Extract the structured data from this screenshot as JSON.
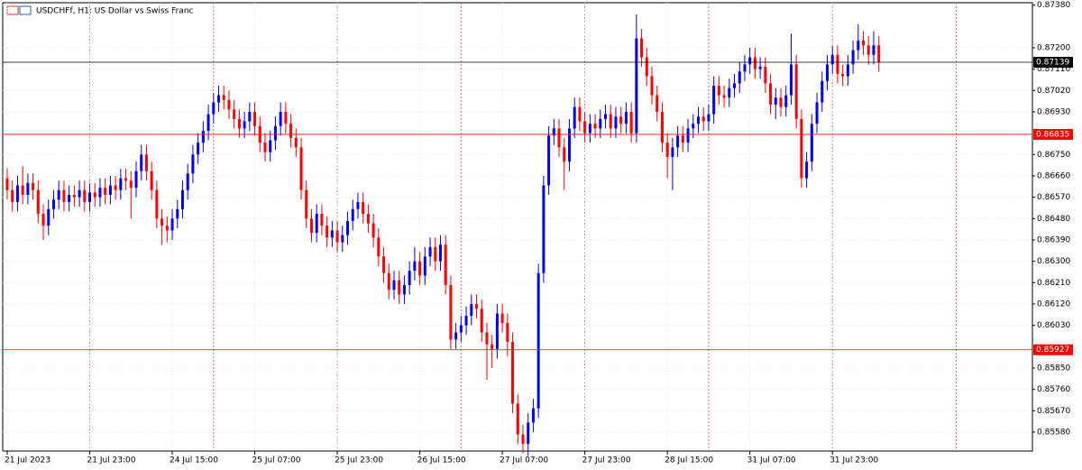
{
  "chart_data": {
    "type": "candlestick",
    "title": "USDCHFf, H1:  US Dollar vs Swiss Franc",
    "bull_color": "#0000ff",
    "bear_color": "#ff0000",
    "grid": true,
    "ylim": [
      0.855,
      0.8739
    ],
    "yticks": [
      {
        "value": 0.8738,
        "label": "0.87380"
      },
      {
        "value": 0.872,
        "label": "0.87200"
      },
      {
        "value": 0.8711,
        "label": "0.87110"
      },
      {
        "value": 0.8702,
        "label": "0.87020"
      },
      {
        "value": 0.8693,
        "label": "0.86930"
      },
      {
        "value": 0.8675,
        "label": "0.86750"
      },
      {
        "value": 0.8666,
        "label": "0.86660"
      },
      {
        "value": 0.8657,
        "label": "0.86570"
      },
      {
        "value": 0.8648,
        "label": "0.86480"
      },
      {
        "value": 0.8639,
        "label": "0.86390"
      },
      {
        "value": 0.863,
        "label": "0.86300"
      },
      {
        "value": 0.8621,
        "label": "0.86210"
      },
      {
        "value": 0.8612,
        "label": "0.86120"
      },
      {
        "value": 0.8603,
        "label": "0.86030"
      },
      {
        "value": 0.8585,
        "label": "0.85850"
      },
      {
        "value": 0.8576,
        "label": "0.85760"
      },
      {
        "value": 0.8567,
        "label": "0.85670"
      },
      {
        "value": 0.8558,
        "label": "0.85580"
      }
    ],
    "levels": [
      {
        "value": 0.87139,
        "color": "#000000"
      },
      {
        "value": 0.86835,
        "color": "#ff0000"
      },
      {
        "value": 0.85927,
        "color": "#ff0000"
      }
    ],
    "categories": [
      "21 Jul 2023",
      null,
      null,
      null,
      null,
      null,
      null,
      null,
      null,
      null,
      null,
      null,
      null,
      null,
      null,
      null,
      "21 Jul 23:00",
      null,
      null,
      null,
      null,
      null,
      null,
      null,
      null,
      null,
      null,
      null,
      null,
      null,
      null,
      null,
      "24 Jul 15:00",
      null,
      null,
      null,
      null,
      null,
      null,
      null,
      null,
      null,
      null,
      null,
      null,
      null,
      null,
      null,
      "25 Jul 07:00",
      null,
      null,
      null,
      null,
      null,
      null,
      null,
      null,
      null,
      null,
      null,
      null,
      null,
      null,
      null,
      "25 Jul 23:00",
      null,
      null,
      null,
      null,
      null,
      null,
      null,
      null,
      null,
      null,
      null,
      null,
      null,
      null,
      null,
      "26 Jul 15:00",
      null,
      null,
      null,
      null,
      null,
      null,
      null,
      null,
      null,
      null,
      null,
      null,
      null,
      null,
      null,
      "27 Jul 07:00",
      null,
      null,
      null,
      null,
      null,
      null,
      null,
      null,
      null,
      null,
      null,
      null,
      null,
      null,
      null,
      "27 Jul 23:00",
      null,
      null,
      null,
      null,
      null,
      null,
      null,
      null,
      null,
      null,
      null,
      null,
      null,
      null,
      null,
      "28 Jul 15:00",
      null,
      null,
      null,
      null,
      null,
      null,
      null,
      null,
      null,
      null,
      null,
      null,
      null,
      null,
      null,
      "31 Jul 07:00",
      null,
      null,
      null,
      null,
      null,
      null,
      null,
      null,
      null,
      null,
      null,
      null,
      null,
      null,
      null,
      "31 Jul 23:00",
      null,
      null,
      null,
      null,
      null,
      null,
      null,
      null,
      null
    ],
    "open": [
      0.8665,
      0.866,
      0.8655,
      0.8662,
      0.8658,
      0.8663,
      0.866,
      0.865,
      0.8645,
      0.8652,
      0.8656,
      0.866,
      0.8655,
      0.8658,
      0.8657,
      0.866,
      0.8655,
      0.8659,
      0.8657,
      0.8661,
      0.8658,
      0.8662,
      0.866,
      0.8665,
      0.8664,
      0.8661,
      0.8668,
      0.8675,
      0.8668,
      0.866,
      0.8648,
      0.8645,
      0.8643,
      0.8648,
      0.8652,
      0.866,
      0.8667,
      0.8675,
      0.868,
      0.8685,
      0.8692,
      0.8697,
      0.87,
      0.8698,
      0.8694,
      0.869,
      0.8686,
      0.8689,
      0.8693,
      0.8687,
      0.868,
      0.8676,
      0.8681,
      0.8687,
      0.8693,
      0.8688,
      0.8682,
      0.8678,
      0.866,
      0.8648,
      0.8642,
      0.865,
      0.8645,
      0.864,
      0.8643,
      0.8638,
      0.8641,
      0.8647,
      0.8652,
      0.8655,
      0.865,
      0.8646,
      0.864,
      0.8632,
      0.8625,
      0.8618,
      0.8622,
      0.8616,
      0.862,
      0.8626,
      0.863,
      0.8624,
      0.8632,
      0.8636,
      0.863,
      0.8637,
      0.862,
      0.8597,
      0.86,
      0.8603,
      0.8607,
      0.8612,
      0.861,
      0.86,
      0.8595,
      0.8593,
      0.8608,
      0.8604,
      0.8596,
      0.857,
      0.8557,
      0.8553,
      0.8562,
      0.8568,
      0.8625,
      0.8662,
      0.8683,
      0.8686,
      0.8678,
      0.8672,
      0.8686,
      0.8695,
      0.8689,
      0.8684,
      0.8688,
      0.8686,
      0.869,
      0.8692,
      0.8686,
      0.8691,
      0.8688,
      0.8693,
      0.8684,
      0.8724,
      0.8716,
      0.8708,
      0.87,
      0.8693,
      0.868,
      0.8674,
      0.8678,
      0.8683,
      0.868,
      0.8686,
      0.8688,
      0.8691,
      0.8689,
      0.8692,
      0.8704,
      0.87,
      0.8699,
      0.8703,
      0.8705,
      0.871,
      0.8713,
      0.8716,
      0.8711,
      0.8712,
      0.8705,
      0.8696,
      0.8699,
      0.8695,
      0.87,
      0.8713,
      0.869,
      0.8665,
      0.8672,
      0.8688,
      0.8697,
      0.8706,
      0.8713,
      0.8717,
      0.8709,
      0.8708,
      0.8713,
      0.8719,
      0.8723,
      0.8721,
      0.8717,
      0.8721
    ],
    "high": [
      0.8669,
      0.8664,
      0.8666,
      0.867,
      0.8667,
      0.8667,
      0.8664,
      0.8654,
      0.8656,
      0.866,
      0.8664,
      0.8664,
      0.8662,
      0.8662,
      0.8664,
      0.8664,
      0.8663,
      0.8663,
      0.8665,
      0.8665,
      0.8666,
      0.8666,
      0.8669,
      0.8669,
      0.8668,
      0.8672,
      0.8679,
      0.8679,
      0.8672,
      0.8664,
      0.8652,
      0.8649,
      0.8652,
      0.8656,
      0.8664,
      0.8671,
      0.8679,
      0.8684,
      0.8689,
      0.8696,
      0.8701,
      0.8704,
      0.8704,
      0.8702,
      0.8698,
      0.8694,
      0.8693,
      0.8697,
      0.8697,
      0.8691,
      0.8684,
      0.8685,
      0.8691,
      0.8697,
      0.8697,
      0.8692,
      0.8686,
      0.8682,
      0.8664,
      0.8652,
      0.8654,
      0.8654,
      0.8649,
      0.8647,
      0.8647,
      0.8645,
      0.8651,
      0.8656,
      0.8659,
      0.8659,
      0.8654,
      0.865,
      0.8644,
      0.8636,
      0.8629,
      0.8626,
      0.8626,
      0.8624,
      0.863,
      0.8636,
      0.8634,
      0.8636,
      0.864,
      0.864,
      0.8641,
      0.8641,
      0.8624,
      0.8604,
      0.8607,
      0.8611,
      0.8616,
      0.8616,
      0.8614,
      0.8604,
      0.8599,
      0.8612,
      0.8612,
      0.8608,
      0.86,
      0.8574,
      0.8561,
      0.8566,
      0.8572,
      0.8629,
      0.8666,
      0.8687,
      0.869,
      0.869,
      0.8682,
      0.869,
      0.8699,
      0.8699,
      0.8693,
      0.8692,
      0.8692,
      0.8694,
      0.8696,
      0.8696,
      0.8695,
      0.8695,
      0.8697,
      0.8697,
      0.8734,
      0.8728,
      0.872,
      0.8712,
      0.8704,
      0.8697,
      0.8684,
      0.8682,
      0.8687,
      0.8687,
      0.869,
      0.8692,
      0.8695,
      0.8695,
      0.8696,
      0.8708,
      0.8708,
      0.8704,
      0.8707,
      0.8709,
      0.8714,
      0.8717,
      0.872,
      0.872,
      0.8716,
      0.8716,
      0.8709,
      0.8703,
      0.8703,
      0.8704,
      0.8726,
      0.8717,
      0.8694,
      0.8676,
      0.8692,
      0.8701,
      0.871,
      0.8717,
      0.8721,
      0.8721,
      0.8713,
      0.8717,
      0.8723,
      0.873,
      0.8727,
      0.8725,
      0.8727,
      0.8725
    ],
    "low": [
      0.8656,
      0.8651,
      0.8651,
      0.8654,
      0.8654,
      0.8656,
      0.8646,
      0.8639,
      0.8641,
      0.8648,
      0.8652,
      0.8651,
      0.8651,
      0.8653,
      0.8653,
      0.8651,
      0.8651,
      0.8653,
      0.8653,
      0.8654,
      0.8654,
      0.8656,
      0.8656,
      0.866,
      0.8648,
      0.8657,
      0.8664,
      0.8664,
      0.8656,
      0.8644,
      0.8637,
      0.8638,
      0.8639,
      0.8644,
      0.8648,
      0.8656,
      0.8663,
      0.8671,
      0.8676,
      0.8681,
      0.8688,
      0.8693,
      0.8694,
      0.869,
      0.8686,
      0.8682,
      0.8682,
      0.8685,
      0.8683,
      0.8676,
      0.8672,
      0.8672,
      0.8677,
      0.8683,
      0.8684,
      0.8678,
      0.8674,
      0.8656,
      0.8644,
      0.8638,
      0.8638,
      0.8641,
      0.8636,
      0.8636,
      0.8634,
      0.8634,
      0.8637,
      0.8643,
      0.8648,
      0.8646,
      0.8642,
      0.8636,
      0.8628,
      0.8621,
      0.8614,
      0.8614,
      0.8612,
      0.8612,
      0.8616,
      0.8622,
      0.862,
      0.862,
      0.8628,
      0.8626,
      0.8626,
      0.8616,
      0.8593,
      0.8593,
      0.8596,
      0.8599,
      0.8603,
      0.8606,
      0.8596,
      0.858,
      0.8585,
      0.8589,
      0.86,
      0.859,
      0.8566,
      0.8553,
      0.8549,
      0.8548,
      0.8558,
      0.8564,
      0.8621,
      0.8658,
      0.8679,
      0.8674,
      0.866,
      0.8668,
      0.8682,
      0.8685,
      0.868,
      0.868,
      0.8682,
      0.8682,
      0.8686,
      0.8682,
      0.8682,
      0.8684,
      0.8684,
      0.868,
      0.868,
      0.8712,
      0.8704,
      0.8696,
      0.8689,
      0.8676,
      0.8665,
      0.866,
      0.8674,
      0.8676,
      0.8676,
      0.8682,
      0.8684,
      0.8685,
      0.8685,
      0.8688,
      0.8696,
      0.8695,
      0.8695,
      0.8699,
      0.8701,
      0.8706,
      0.8709,
      0.8707,
      0.8707,
      0.8701,
      0.8692,
      0.869,
      0.8691,
      0.8691,
      0.8696,
      0.8686,
      0.8661,
      0.8661,
      0.8668,
      0.8684,
      0.8693,
      0.8702,
      0.8709,
      0.8705,
      0.8704,
      0.8704,
      0.8709,
      0.8715,
      0.8717,
      0.8713,
      0.8713,
      0.871
    ],
    "close": [
      0.866,
      0.8655,
      0.8662,
      0.8658,
      0.8663,
      0.866,
      0.865,
      0.8645,
      0.8652,
      0.8656,
      0.866,
      0.8655,
      0.8658,
      0.8657,
      0.866,
      0.8655,
      0.8659,
      0.8657,
      0.8661,
      0.8658,
      0.8662,
      0.866,
      0.8665,
      0.8664,
      0.8661,
      0.8668,
      0.8675,
      0.8668,
      0.866,
      0.8648,
      0.8645,
      0.8643,
      0.8648,
      0.8652,
      0.866,
      0.8667,
      0.8675,
      0.868,
      0.8685,
      0.8692,
      0.8697,
      0.87,
      0.8698,
      0.8694,
      0.869,
      0.8686,
      0.8689,
      0.8693,
      0.8687,
      0.868,
      0.8676,
      0.8681,
      0.8687,
      0.8693,
      0.8688,
      0.8682,
      0.8678,
      0.866,
      0.8648,
      0.8642,
      0.865,
      0.8645,
      0.864,
      0.8643,
      0.8638,
      0.8641,
      0.8647,
      0.8652,
      0.8655,
      0.865,
      0.8646,
      0.864,
      0.8632,
      0.8625,
      0.8618,
      0.8622,
      0.8616,
      0.862,
      0.8626,
      0.863,
      0.8624,
      0.8632,
      0.8636,
      0.863,
      0.8637,
      0.862,
      0.8597,
      0.86,
      0.8603,
      0.8607,
      0.8612,
      0.861,
      0.86,
      0.8595,
      0.8593,
      0.8608,
      0.8604,
      0.8596,
      0.857,
      0.8557,
      0.8553,
      0.8562,
      0.8568,
      0.8625,
      0.8662,
      0.8683,
      0.8686,
      0.8678,
      0.8672,
      0.8686,
      0.8695,
      0.8689,
      0.8684,
      0.8688,
      0.8686,
      0.869,
      0.8692,
      0.8686,
      0.8691,
      0.8688,
      0.8693,
      0.8684,
      0.8724,
      0.8716,
      0.8708,
      0.87,
      0.8693,
      0.868,
      0.8674,
      0.8678,
      0.8683,
      0.868,
      0.8686,
      0.8688,
      0.8691,
      0.8689,
      0.8692,
      0.8704,
      0.87,
      0.8699,
      0.8703,
      0.8705,
      0.871,
      0.8713,
      0.8716,
      0.8711,
      0.8712,
      0.8705,
      0.8696,
      0.8699,
      0.8695,
      0.87,
      0.8713,
      0.869,
      0.8665,
      0.8672,
      0.8688,
      0.8697,
      0.8706,
      0.8713,
      0.8717,
      0.8709,
      0.8708,
      0.8713,
      0.8719,
      0.8723,
      0.8721,
      0.8717,
      0.8721,
      0.8714
    ]
  }
}
